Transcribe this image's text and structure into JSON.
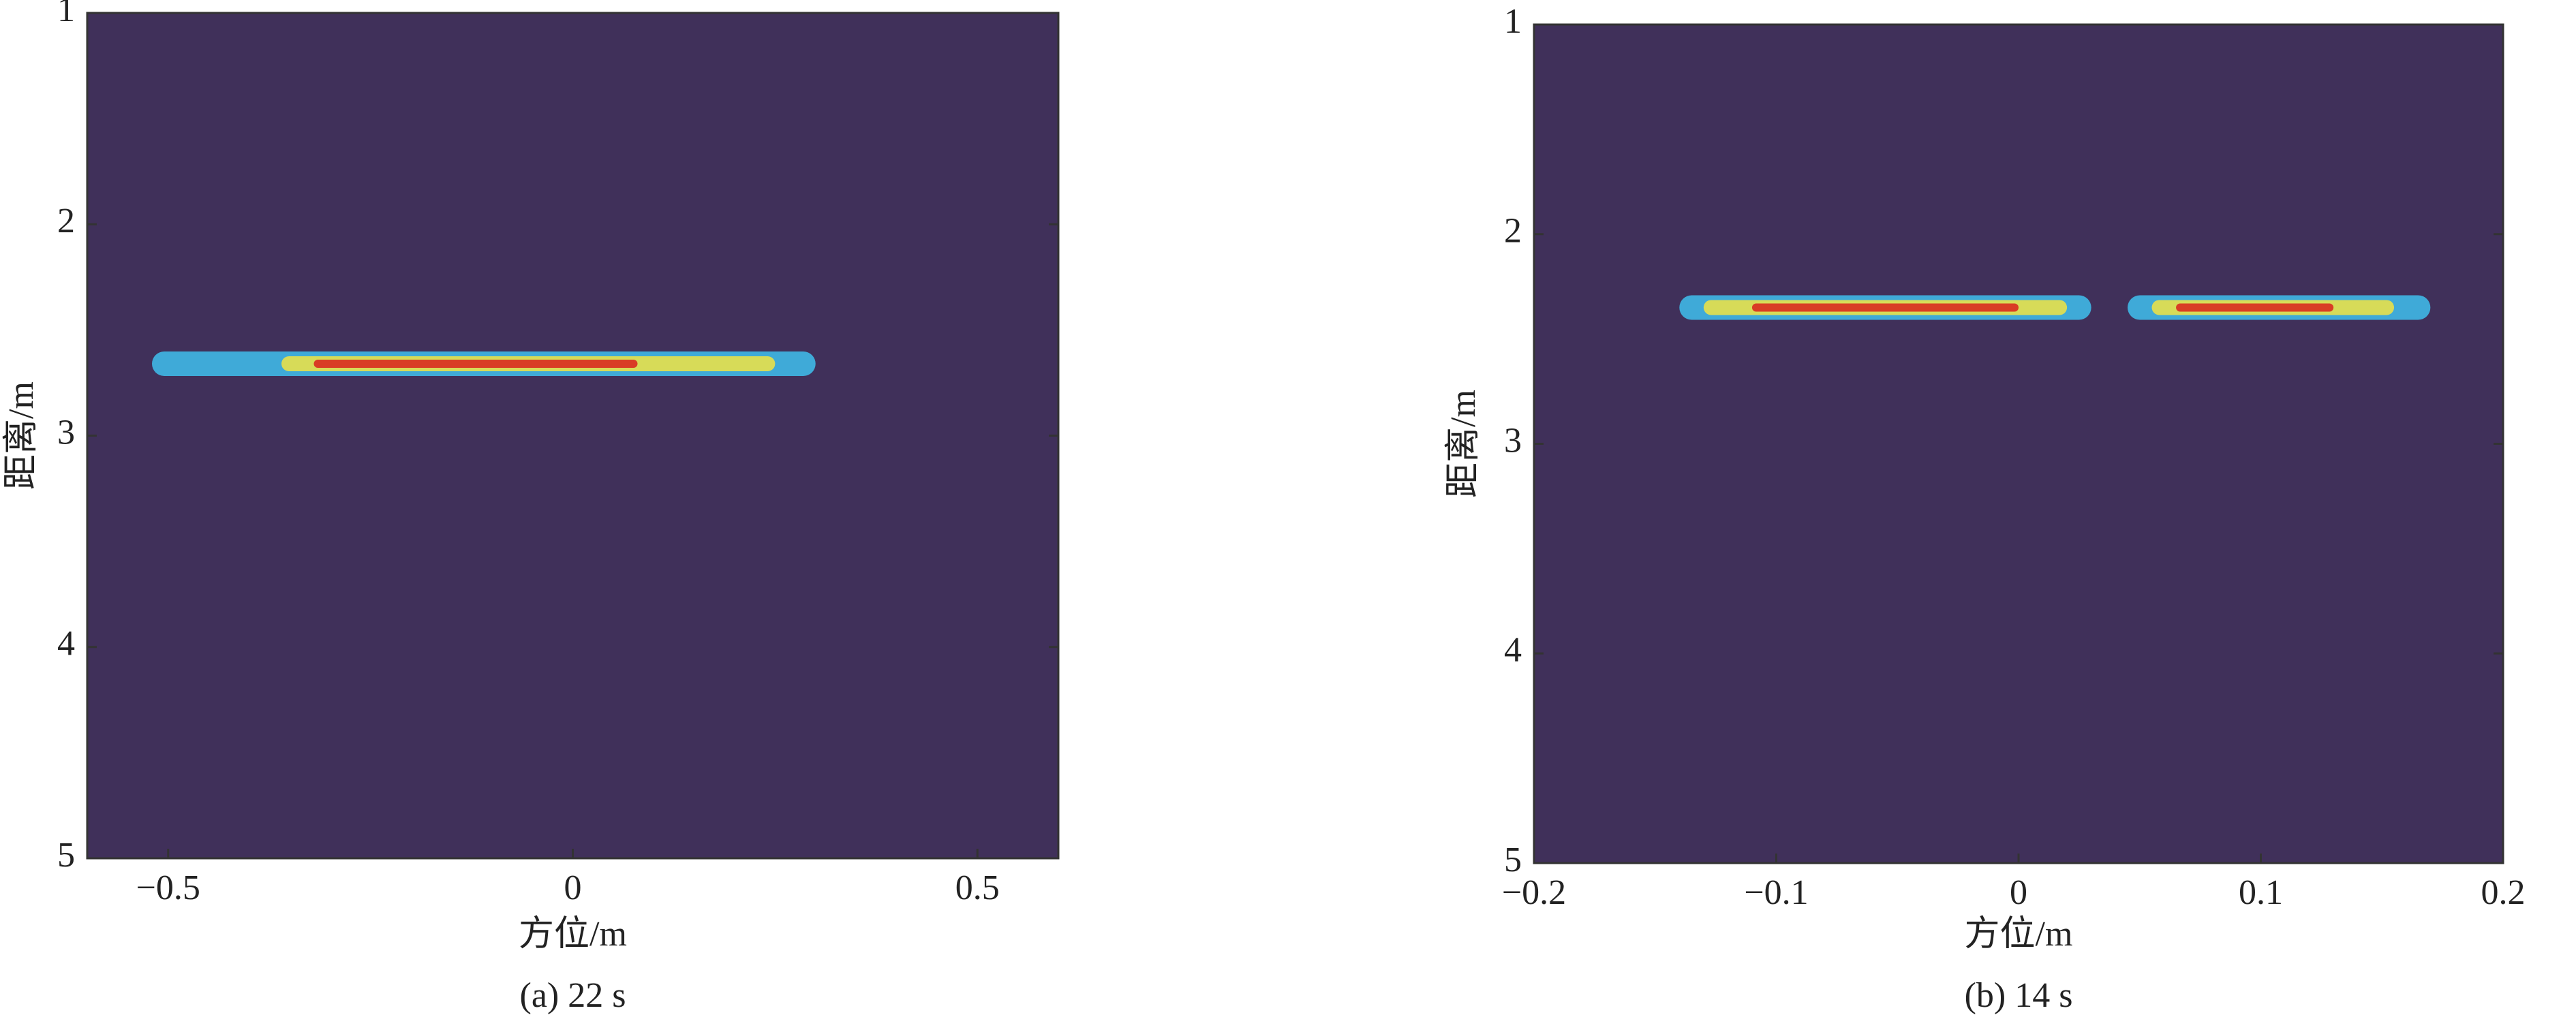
{
  "chart_data": [
    {
      "type": "heatmap",
      "caption": "(a) 22 s",
      "xlabel": "方位/m",
      "ylabel": "距离/m",
      "xlim": [
        -0.6,
        0.6
      ],
      "ylim": [
        5,
        1
      ],
      "y_reversed": true,
      "xticks": [
        {
          "value": -0.5,
          "label": "−0.5"
        },
        0,
        0.5
      ],
      "yticks": [
        1,
        2,
        3,
        4,
        5
      ],
      "background": "#40305a",
      "streaks": [
        {
          "x": [
            -0.52,
            0.3
          ],
          "y": 2.66,
          "level": 1
        },
        {
          "x": [
            -0.36,
            0.25
          ],
          "y": 2.66,
          "level": 2
        },
        {
          "x": [
            -0.32,
            0.08
          ],
          "y": 2.66,
          "level": 3
        }
      ]
    },
    {
      "type": "heatmap",
      "caption": "(b) 14 s",
      "xlabel": "方位/m",
      "ylabel": "距离/m",
      "xlim": [
        -0.2,
        0.2
      ],
      "ylim": [
        5,
        1
      ],
      "y_reversed": true,
      "xticks": [
        {
          "value": -0.2,
          "label": "−0.2"
        },
        {
          "value": -0.1,
          "label": "−0.1"
        },
        0,
        0.1,
        0.2
      ],
      "yticks": [
        1,
        2,
        3,
        4,
        5
      ],
      "background": "#40305a",
      "streaks": [
        {
          "x": [
            -0.14,
            0.03
          ],
          "y": 2.35,
          "level": 1
        },
        {
          "x": [
            -0.13,
            0.02
          ],
          "y": 2.35,
          "level": 2
        },
        {
          "x": [
            -0.11,
            0.0
          ],
          "y": 2.35,
          "level": 3
        },
        {
          "x": [
            0.045,
            0.17
          ],
          "y": 2.35,
          "level": 1
        },
        {
          "x": [
            0.055,
            0.155
          ],
          "y": 2.35,
          "level": 2
        },
        {
          "x": [
            0.065,
            0.13
          ],
          "y": 2.35,
          "level": 3
        }
      ]
    }
  ]
}
